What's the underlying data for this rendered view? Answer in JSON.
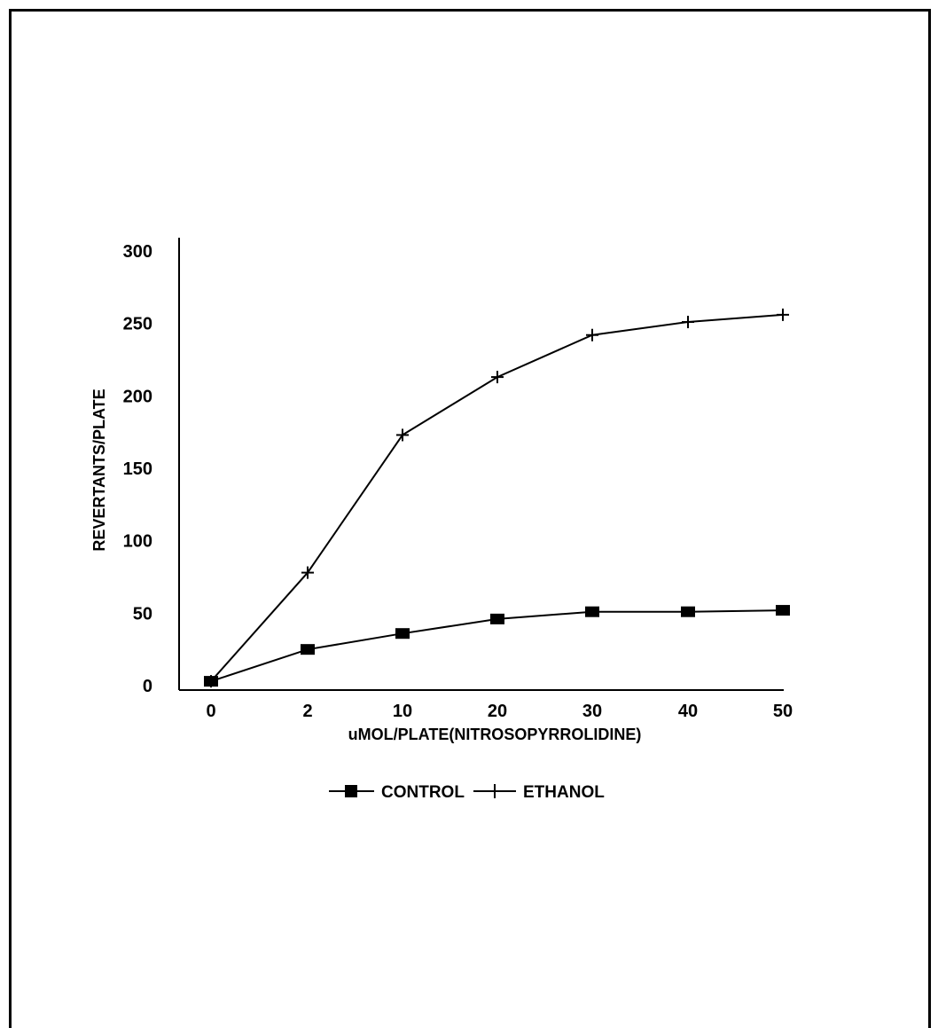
{
  "chart_data": {
    "type": "line",
    "xlabel": "uMOL/PLATE(NITROSOPYRROLIDINE)",
    "ylabel": "REVERTANTS/PLATE",
    "categories": [
      "0",
      "2",
      "10",
      "20",
      "30",
      "40",
      "50"
    ],
    "y_ticks": [
      "0",
      "50",
      "100",
      "150",
      "200",
      "250",
      "300"
    ],
    "ylim": [
      0,
      300
    ],
    "grid": false,
    "legend_position": "bottom-center",
    "series": [
      {
        "name": "CONTROL",
        "marker": "square",
        "values": [
          3,
          25,
          36,
          46,
          51,
          51,
          52
        ]
      },
      {
        "name": "ETHANOL",
        "marker": "plus",
        "values": [
          3,
          78,
          173,
          213,
          242,
          251,
          256
        ]
      }
    ]
  },
  "colors": {
    "line": "#000000",
    "background": "#ffffff"
  }
}
